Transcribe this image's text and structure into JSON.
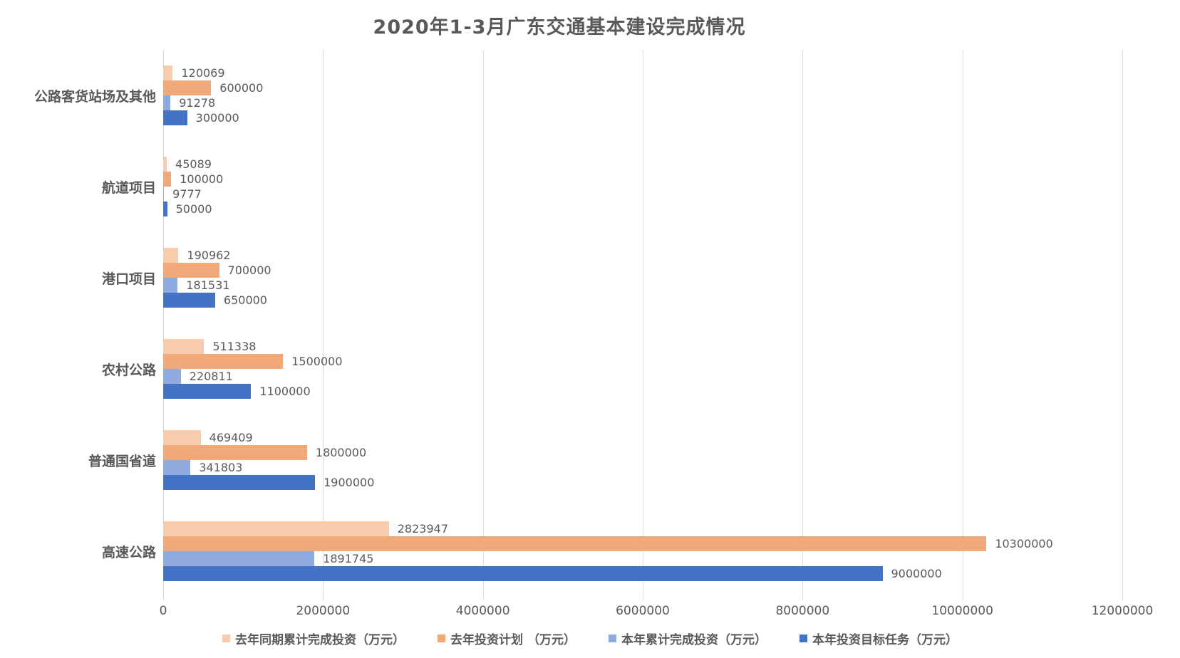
{
  "chart_data": {
    "type": "bar",
    "orientation": "horizontal",
    "title": "2020年1-3月广东交通基本建设完成情况",
    "categories": [
      "公路客货站场及其他",
      "航道项目",
      "港口项目",
      "农村公路",
      "普通国省道",
      "高速公路"
    ],
    "series": [
      {
        "name": "去年同期累计完成投资（万元）",
        "color": "#F8CBAD",
        "values": [
          120069,
          45089,
          190962,
          511338,
          469409,
          2823947
        ]
      },
      {
        "name": "去年投资计划 （万元）",
        "color": "#F2A979",
        "values": [
          600000,
          100000,
          700000,
          1500000,
          1800000,
          10300000
        ]
      },
      {
        "name": "本年累计完成投资（万元）",
        "color": "#8FAADC",
        "values": [
          91278,
          9777,
          181531,
          220811,
          341803,
          1891745
        ]
      },
      {
        "name": "本年投资目标任务（万元）",
        "color": "#4472C4",
        "values": [
          300000,
          50000,
          650000,
          1100000,
          1900000,
          9000000
        ]
      }
    ],
    "x_axis": {
      "min": 0,
      "max": 12000000,
      "step": 2000000,
      "tick_labels": [
        "0",
        "2000000",
        "4000000",
        "6000000",
        "8000000",
        "10000000",
        "12000000"
      ]
    },
    "data_labels": true,
    "grid": true,
    "legend_position": "bottom",
    "colors": {
      "gridline": "#D9D9D9",
      "text": "#595959",
      "title": "#595959"
    }
  }
}
